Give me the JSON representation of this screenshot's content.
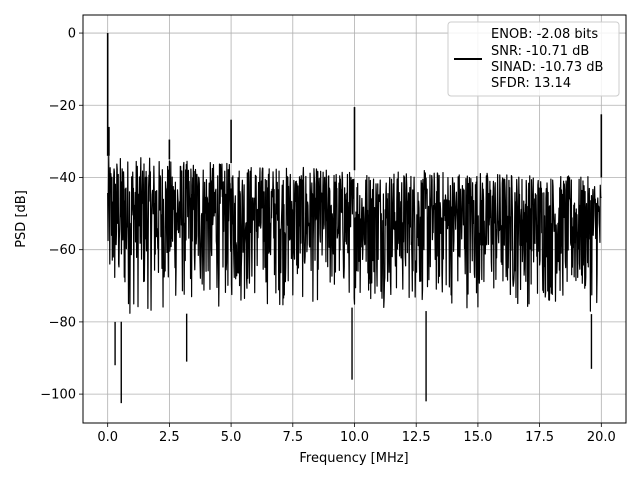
{
  "chart_data": {
    "type": "line",
    "title": "",
    "xlabel": "Frequency [MHz]",
    "ylabel": "PSD [dB]",
    "xlim": [
      -1.0,
      21.0
    ],
    "ylim": [
      -108,
      5
    ],
    "xticks": [
      0.0,
      2.5,
      5.0,
      7.5,
      10.0,
      12.5,
      15.0,
      17.5,
      20.0
    ],
    "xtick_labels": [
      "0.0",
      "2.5",
      "5.0",
      "7.5",
      "10.0",
      "12.5",
      "15.0",
      "17.5",
      "20.0"
    ],
    "yticks": [
      0,
      -20,
      -40,
      -60,
      -80,
      -100
    ],
    "ytick_labels": [
      "0",
      "−20",
      "−40",
      "−60",
      "−80",
      "−100"
    ],
    "grid": true,
    "legend_position": "top-right",
    "legend_lines": [
      "ENOB: -2.08 bits",
      "SNR: -10.71 dB",
      "SINAD: -10.73 dB",
      "SFDR: 13.14"
    ],
    "line_color": "#000000",
    "noise_envelope": {
      "x": [
        0.0,
        0.5,
        2.5,
        5.0,
        7.5,
        10.0,
        12.5,
        15.0,
        17.5,
        20.0
      ],
      "upper": [
        -34,
        -34,
        -35,
        -36,
        -37,
        -38,
        -38,
        -38,
        -39,
        -40
      ],
      "lower": [
        -80,
        -80,
        -78,
        -77,
        -77,
        -76,
        -77,
        -77,
        -77,
        -78
      ]
    },
    "peaks": [
      {
        "x": 0.0,
        "y": 0
      },
      {
        "x": 0.05,
        "y": -26
      },
      {
        "x": 2.5,
        "y": -29.5
      },
      {
        "x": 5.0,
        "y": -24
      },
      {
        "x": 10.0,
        "y": -20.5
      },
      {
        "x": 20.0,
        "y": -22.5
      }
    ],
    "dips": [
      {
        "x": 0.55,
        "y": -102.5
      },
      {
        "x": 0.3,
        "y": -92
      },
      {
        "x": 12.9,
        "y": -102
      },
      {
        "x": 9.9,
        "y": -96
      },
      {
        "x": 19.6,
        "y": -93
      },
      {
        "x": 3.2,
        "y": -91
      }
    ]
  }
}
